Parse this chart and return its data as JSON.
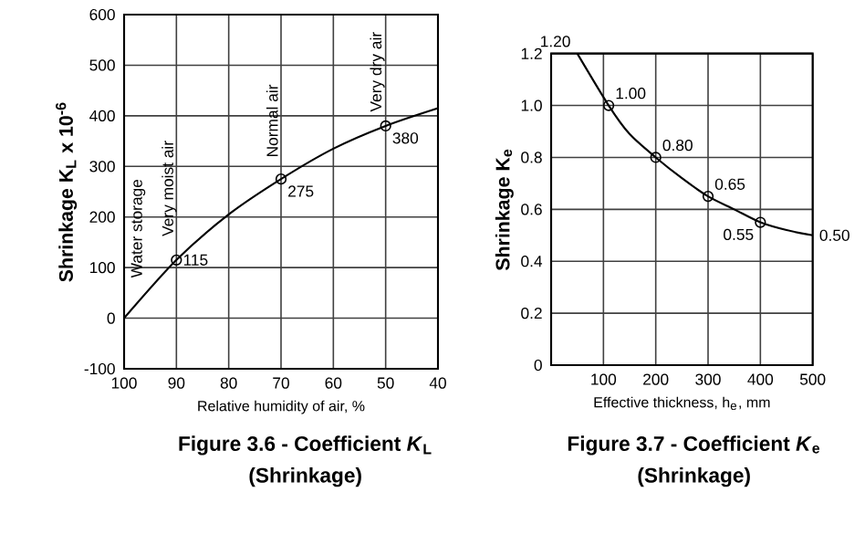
{
  "chart_data": [
    {
      "type": "line",
      "title": "Figure 3.6 - Coefficient *K*$_{L}$",
      "subtitle": "(Shrinkage)",
      "xlabel": "Relative humidity of air, %",
      "ylabel": "Shrinkage K$_{L}$ x 10$^{-6}$",
      "xlim": [
        100,
        40
      ],
      "ylim": [
        -100,
        600
      ],
      "xticks": [
        100,
        90,
        80,
        70,
        60,
        50,
        40
      ],
      "yticks": [
        -100,
        0,
        100,
        200,
        300,
        400,
        500,
        600
      ],
      "grid": true,
      "series": [
        {
          "color": "#000000",
          "marker": "none",
          "x": [
            100,
            90,
            80,
            70,
            60,
            50,
            40
          ],
          "values": [
            0,
            115,
            205,
            275,
            335,
            380,
            415
          ]
        },
        {
          "type": "scatter",
          "color": "#000000",
          "marker": "circle",
          "x": [
            90,
            70,
            50
          ],
          "values": [
            115,
            275,
            380
          ],
          "value_labels": [
            "115",
            "275",
            "380"
          ]
        }
      ],
      "annotations": [
        "Water storage",
        "Very moist air",
        "Normal air",
        "Very dry air"
      ]
    },
    {
      "type": "line",
      "title": "Figure 3.7 - Coefficient *K*$_{e}$",
      "subtitle": "(Shrinkage)",
      "xlabel": "Effective thickness, h$_{e}$, mm",
      "ylabel": "Shrinkage K$_{e}$",
      "xlim": [
        0,
        500
      ],
      "ylim": [
        0,
        1.2
      ],
      "xticks": [
        100,
        200,
        300,
        400,
        500
      ],
      "yticks": [
        0,
        {
          "value": 0.2,
          "label": "0.2"
        },
        {
          "value": 0.4,
          "label": "0.4"
        },
        {
          "value": 0.6,
          "label": "0.6"
        },
        {
          "value": 0.8,
          "label": "0.8"
        },
        {
          "value": 1,
          "label": "1.0"
        },
        {
          "value": 1.2,
          "label": "1.2"
        }
      ],
      "grid": true,
      "series": [
        {
          "color": "#000000",
          "marker": "none",
          "x": [
            50,
            110,
            150,
            200,
            250,
            300,
            350,
            400,
            450,
            500
          ],
          "values": [
            1.2,
            1.0,
            0.89,
            0.8,
            0.72,
            0.65,
            0.6,
            0.55,
            0.52,
            0.5
          ],
          "value_labels": [
            "1.20",
            null,
            null,
            null,
            null,
            null,
            null,
            null,
            null,
            "0.50"
          ]
        },
        {
          "type": "scatter",
          "color": "#000000",
          "marker": "circle",
          "x": [
            110,
            200,
            300,
            400
          ],
          "values": [
            1.0,
            0.8,
            0.65,
            0.55
          ],
          "value_labels": [
            "1.00",
            "0.80",
            "0.65",
            "0.55"
          ]
        }
      ]
    }
  ]
}
